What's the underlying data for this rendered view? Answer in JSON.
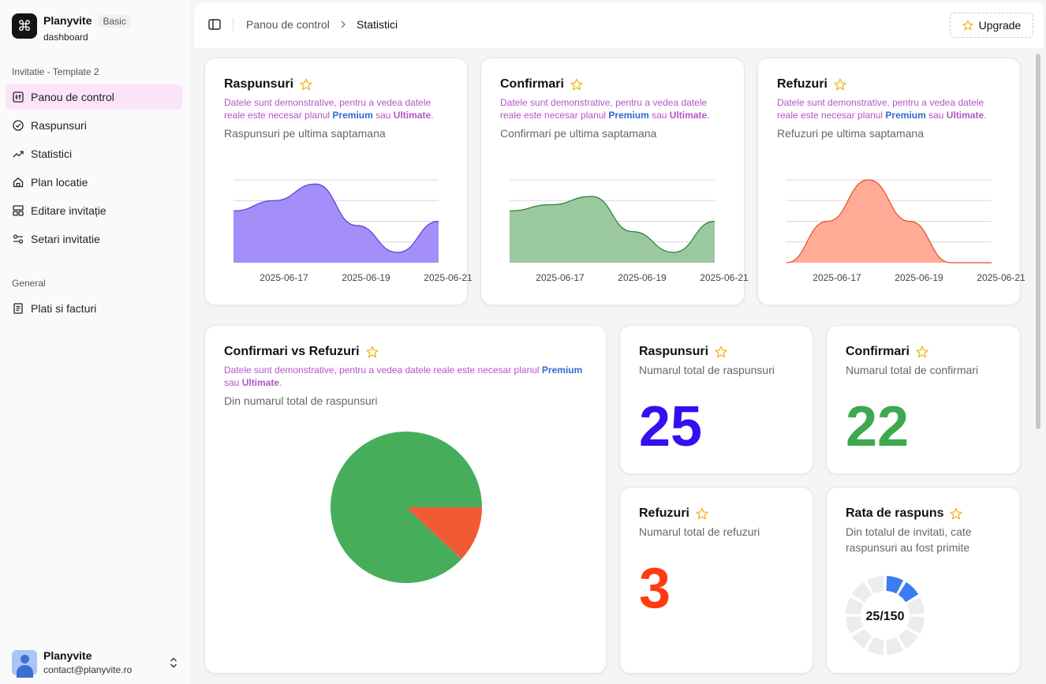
{
  "brand": {
    "logo_glyph": "⌘",
    "name": "Planyvite",
    "badge": "Basic",
    "subtitle": "dashboard"
  },
  "sidebar": {
    "section1": "Invitatie - Template 2",
    "items": [
      {
        "label": "Panou de control",
        "icon": "dashboard-icon"
      },
      {
        "label": "Raspunsuri",
        "icon": "check-circle-icon"
      },
      {
        "label": "Statistici",
        "icon": "trending-up-icon"
      },
      {
        "label": "Plan locatie",
        "icon": "home-icon"
      },
      {
        "label": "Editare invitație",
        "icon": "layout-icon"
      },
      {
        "label": "Setari invitatie",
        "icon": "settings-sliders-icon"
      }
    ],
    "section2": "General",
    "general_items": [
      {
        "label": "Plati si facturi",
        "icon": "receipt-icon"
      }
    ]
  },
  "user": {
    "name": "Planyvite",
    "email": "contact@planyvite.ro"
  },
  "topbar": {
    "crumb_parent": "Panou de control",
    "crumb_current": "Statistici",
    "upgrade_label": "Upgrade"
  },
  "demo_notice": {
    "prefix": "Datele sunt demonstrative, pentru a vedea datele reale este necesar planul ",
    "premium": "Premium",
    "middle": " sau ",
    "ultimate": "Ultimate",
    "suffix": "."
  },
  "colors": {
    "responses": "#a48ef7",
    "responses_line": "#5a3ee0",
    "confirmations": "#9ac99f",
    "confirmations_line": "#2f7a3a",
    "refusals": "#ffab96",
    "refusals_line": "#e84c2a",
    "pie_confirm": "#46ae5a",
    "pie_refuse": "#f05a34",
    "num_responses": "#3210f0",
    "num_confirm": "#3ea84f",
    "num_refuse": "#ff3b10",
    "ring_active": "#3b7cf0",
    "ring_inactive": "#ececec"
  },
  "cards": {
    "responses_chart": {
      "title": "Raspunsuri",
      "subtitle": "Raspunsuri pe ultima saptamana"
    },
    "confirm_chart": {
      "title": "Confirmari",
      "subtitle": "Confirmari pe ultima saptamana"
    },
    "refuse_chart": {
      "title": "Refuzuri",
      "subtitle": "Refuzuri pe ultima saptamana"
    },
    "pie": {
      "title": "Confirmari vs Refuzuri",
      "subtitle": "Din numarul total de raspunsuri"
    },
    "total_responses": {
      "title": "Raspunsuri",
      "subtitle": "Numarul total de raspunsuri",
      "value": "25"
    },
    "total_confirm": {
      "title": "Confirmari",
      "subtitle": "Numarul total de confirmari",
      "value": "22"
    },
    "total_refuse": {
      "title": "Refuzuri",
      "subtitle": "Numarul total de refuzuri",
      "value": "3"
    },
    "rate": {
      "title": "Rata de raspuns",
      "subtitle": "Din totalul de invitati, cate raspunsuri au fost primite",
      "value": "25/150"
    }
  },
  "chart_data": [
    {
      "type": "area",
      "title": "Raspunsuri",
      "x": [
        "2025-06-16",
        "2025-06-17",
        "2025-06-18",
        "2025-06-19",
        "2025-06-20",
        "2025-06-21"
      ],
      "tick_labels": [
        "2025-06-17",
        "2025-06-19",
        "2025-06-21"
      ],
      "values": [
        2.5,
        3.0,
        3.8,
        1.8,
        0.5,
        2.0
      ],
      "ylim": [
        0,
        4
      ],
      "grid": true
    },
    {
      "type": "area",
      "title": "Confirmari",
      "x": [
        "2025-06-16",
        "2025-06-17",
        "2025-06-18",
        "2025-06-19",
        "2025-06-20",
        "2025-06-21"
      ],
      "tick_labels": [
        "2025-06-17",
        "2025-06-19",
        "2025-06-21"
      ],
      "values": [
        2.5,
        2.8,
        3.2,
        1.5,
        0.5,
        2.0
      ],
      "ylim": [
        0,
        4
      ],
      "grid": true
    },
    {
      "type": "area",
      "title": "Refuzuri",
      "x": [
        "2025-06-16",
        "2025-06-17",
        "2025-06-18",
        "2025-06-19",
        "2025-06-20",
        "2025-06-21"
      ],
      "tick_labels": [
        "2025-06-17",
        "2025-06-19",
        "2025-06-21"
      ],
      "values": [
        0,
        2.0,
        4.0,
        2.0,
        0,
        0
      ],
      "ylim": [
        0,
        4
      ],
      "grid": true
    },
    {
      "type": "pie",
      "title": "Confirmari vs Refuzuri",
      "categories": [
        "Confirmari",
        "Refuzuri"
      ],
      "values": [
        22,
        3
      ]
    }
  ],
  "response_rate": {
    "received": 25,
    "total": 150,
    "segments": 12
  }
}
